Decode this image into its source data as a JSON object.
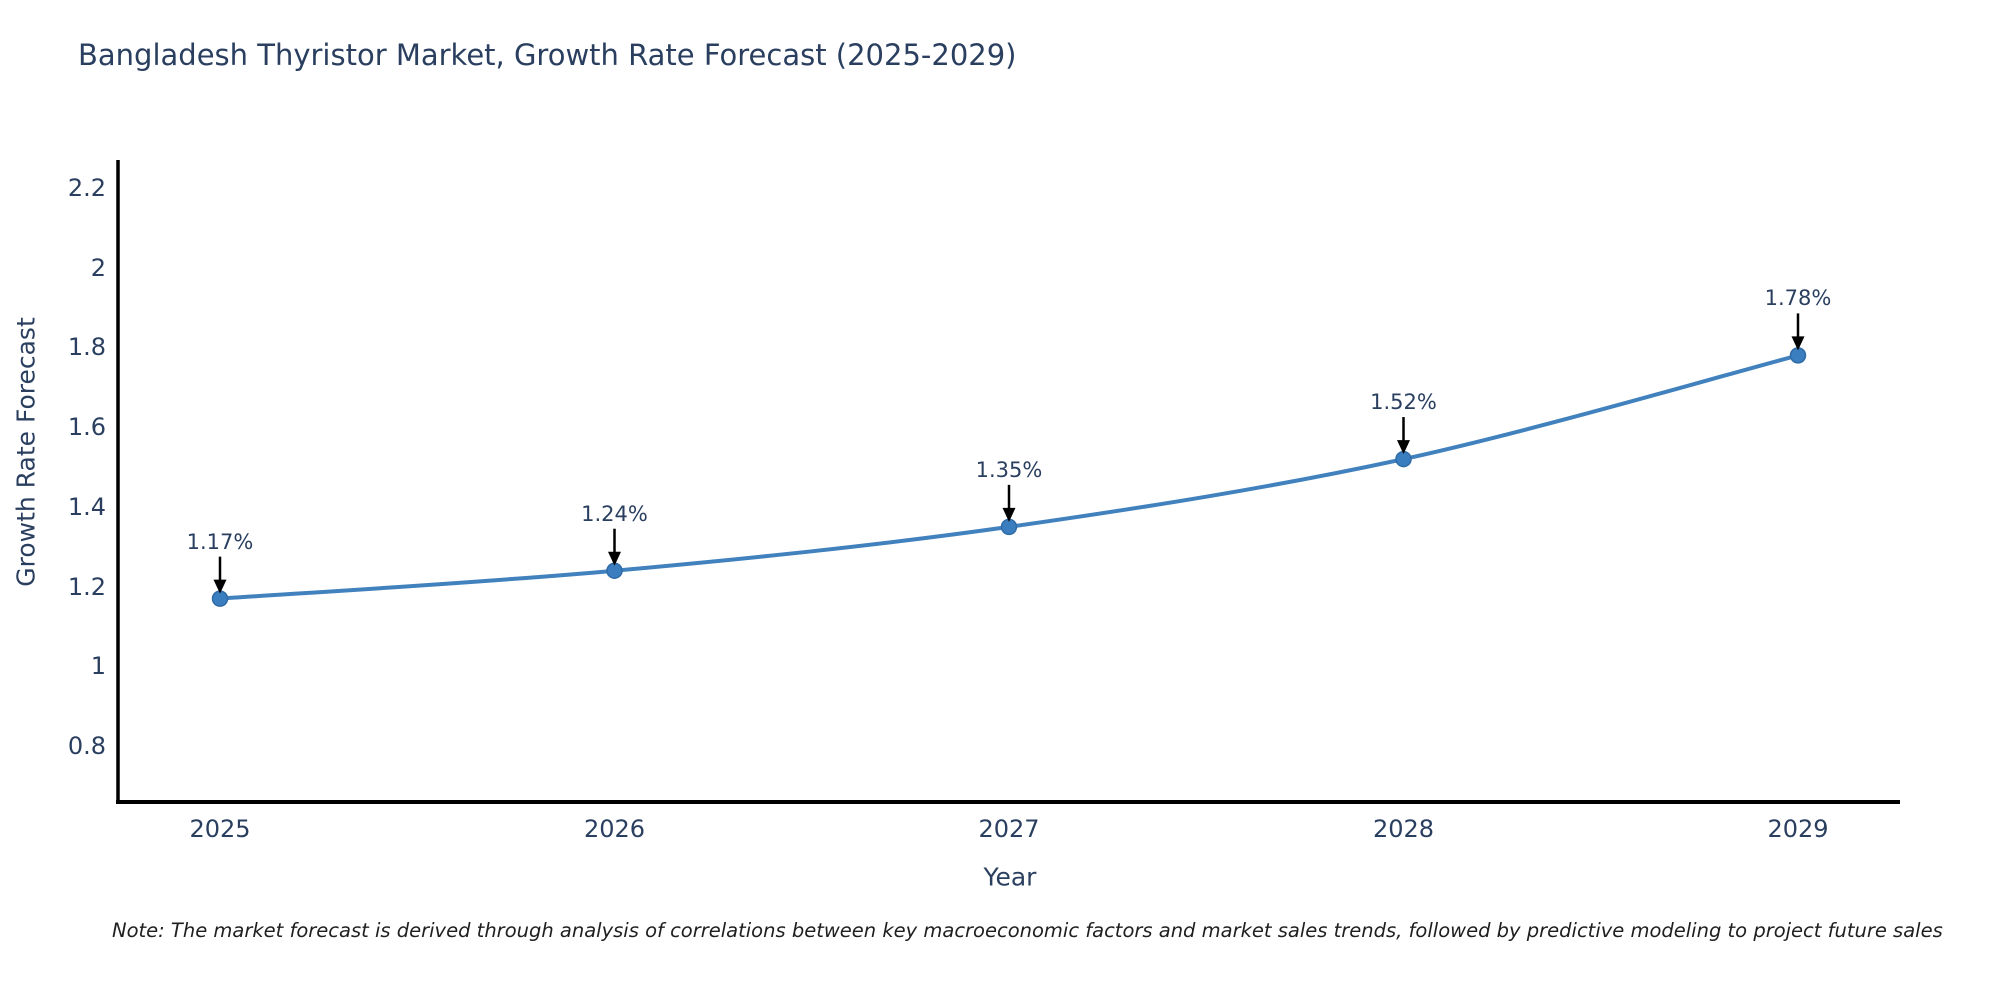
{
  "chart_data": {
    "type": "line",
    "title": "Bangladesh Thyristor Market, Growth Rate Forecast (2025-2029)",
    "xlabel": "Year",
    "ylabel": "Growth Rate Forecast",
    "categories": [
      "2025",
      "2026",
      "2027",
      "2028",
      "2029"
    ],
    "series": [
      {
        "name": "Growth Rate Forecast",
        "values": [
          1.17,
          1.24,
          1.35,
          1.52,
          1.78
        ],
        "point_labels": [
          "1.17%",
          "1.24%",
          "1.35%",
          "1.52%",
          "1.78%"
        ]
      }
    ],
    "ytick_labels": [
      "0.8",
      "1",
      "1.2",
      "1.4",
      "1.6",
      "1.8",
      "2",
      "2.2"
    ],
    "ytick_values": [
      0.8,
      1.0,
      1.2,
      1.4,
      1.6,
      1.8,
      2.0,
      2.2
    ],
    "ylim": [
      0.66,
      2.27
    ],
    "grid": false,
    "legend_position": "none",
    "line_shape": "spline",
    "colors": {
      "line": "#4181bd",
      "marker_fill": "#3a7ebf",
      "marker_edge": "#2f6ba6",
      "axis_spine": "#000000",
      "annotation_arrow": "#000000",
      "title_text": "#2a3f5f",
      "tick_text": "#2a3f5f"
    }
  },
  "note": {
    "text": "Note: The market forecast is derived through analysis of correlations between key macroeconomic factors and market sales trends, followed by predictive modeling to project future sales"
  }
}
